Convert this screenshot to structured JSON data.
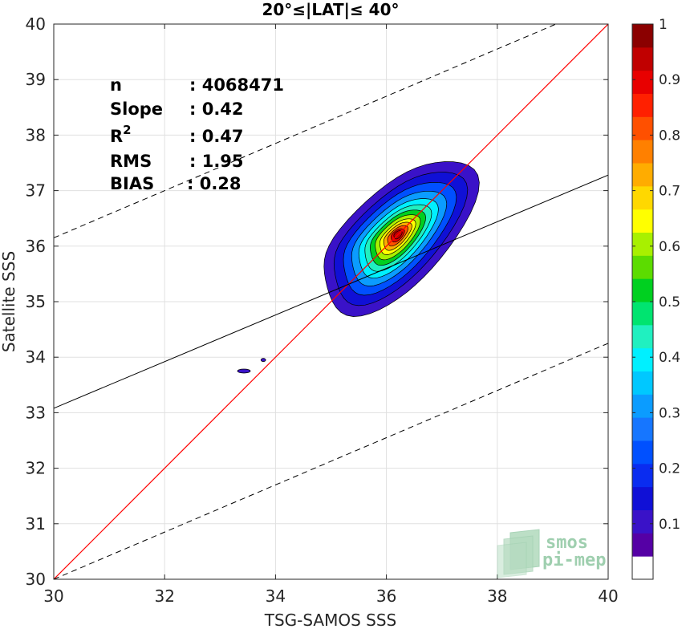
{
  "chart_data": {
    "type": "contour",
    "title": "20°≤|LAT|≤ 40°",
    "xlabel": "TSG-SAMOS SSS",
    "ylabel": "Satellite SSS",
    "xlim": [
      30,
      40
    ],
    "ylim": [
      30,
      40
    ],
    "xticks": [
      30,
      32,
      34,
      36,
      38,
      40
    ],
    "yticks": [
      30,
      31,
      32,
      33,
      34,
      35,
      36,
      37,
      38,
      39,
      40
    ],
    "grid": true,
    "stats": [
      {
        "label": "n",
        "value": ": 4068471"
      },
      {
        "label": "Slope",
        "value": ": 0.42"
      },
      {
        "label": "R",
        "sup": "2",
        "value": ": 0.47"
      },
      {
        "label": "RMS",
        "value": ": 1.95"
      },
      {
        "label": "BIAS",
        "value": ": 0.28"
      }
    ],
    "lines": {
      "one_to_one": {
        "slope": 1,
        "intercept": 0,
        "color": "#ff0000"
      },
      "regression": {
        "x": [
          30,
          40
        ],
        "y": [
          33.08,
          37.28
        ],
        "color": "#000000"
      },
      "upper_dashed": {
        "x": [
          30,
          40
        ],
        "y": [
          36.15,
          40.4
        ],
        "color": "#000000"
      },
      "lower_dashed": {
        "x": [
          30,
          40
        ],
        "y": [
          30.0,
          34.25
        ],
        "color": "#000000"
      }
    },
    "density_peak": {
      "x": 36.2,
      "y": 36.2
    },
    "contour_levels": [
      0.05,
      0.1,
      0.2,
      0.3,
      0.4,
      0.5,
      0.6,
      0.7,
      0.8,
      0.9
    ],
    "colorbar": {
      "range": [
        0,
        1
      ],
      "ticks": [
        "0.1",
        "0.2",
        "0.3",
        "0.4",
        "0.5",
        "0.6",
        "0.7",
        "0.8",
        "0.9",
        "1"
      ],
      "colors": [
        "#ffffff",
        "#5500a5",
        "#3a12c8",
        "#1010d6",
        "#0a2cf0",
        "#0050ff",
        "#1676ff",
        "#0b9cff",
        "#00c8ff",
        "#00f0ff",
        "#20f0c0",
        "#00e470",
        "#00d020",
        "#5cdc00",
        "#a8f000",
        "#ffff00",
        "#ffd800",
        "#ffac00",
        "#ff8000",
        "#ff5000",
        "#ff2000",
        "#e80000",
        "#c00000",
        "#8b0000"
      ]
    },
    "legend": "none"
  },
  "watermark": {
    "line1": "smos",
    "line2": "pi-mep"
  }
}
